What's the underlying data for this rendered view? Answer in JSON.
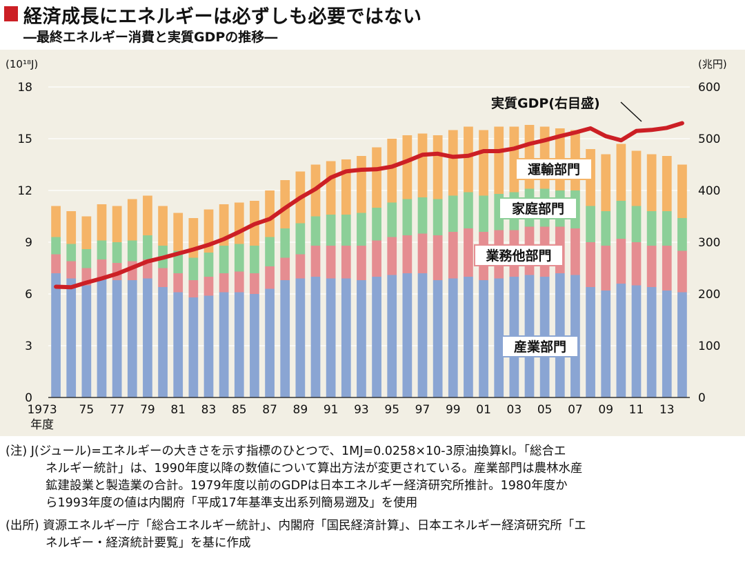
{
  "header": {
    "title": "経済成長にエネルギーは必ずしも必要ではない",
    "subtitle": "―最終エネルギー消費と実質GDPの推移―"
  },
  "colors": {
    "industry": "#8aa5d3",
    "business": "#e58d91",
    "household": "#8ccf98",
    "transport": "#f5b467",
    "gdp_line": "#cc1f25",
    "background": "#f2efe4",
    "title_mark": "#cc1f25"
  },
  "chart_data": {
    "type": "bar",
    "stacked": true,
    "left_unit": "(10¹⁸J)",
    "right_unit": "(兆円)",
    "ylim": [
      0,
      18
    ],
    "y2lim": [
      0,
      600
    ],
    "y_ticks": [
      0,
      3,
      6,
      9,
      12,
      15,
      18
    ],
    "y2_ticks": [
      0,
      100,
      200,
      300,
      400,
      500,
      600
    ],
    "x_tick_labels": [
      "1973",
      "75",
      "77",
      "79",
      "81",
      "83",
      "85",
      "87",
      "89",
      "91",
      "93",
      "95",
      "97",
      "99",
      "01",
      "03",
      "05",
      "07",
      "09",
      "11",
      "13"
    ],
    "x_axis_suffix": "年度",
    "categories": [
      1973,
      1974,
      1975,
      1976,
      1977,
      1978,
      1979,
      1980,
      1981,
      1982,
      1983,
      1984,
      1985,
      1986,
      1987,
      1988,
      1989,
      1990,
      1991,
      1992,
      1993,
      1994,
      1995,
      1996,
      1997,
      1998,
      1999,
      2000,
      2001,
      2002,
      2003,
      2004,
      2005,
      2006,
      2007,
      2008,
      2009,
      2010,
      2011,
      2012,
      2013,
      2014
    ],
    "series": [
      {
        "name": "産業部門",
        "key": "industry",
        "values": [
          7.2,
          6.9,
          6.5,
          6.9,
          6.8,
          6.8,
          6.9,
          6.4,
          6.1,
          5.8,
          5.9,
          6.1,
          6.1,
          6.0,
          6.3,
          6.8,
          6.9,
          7.0,
          6.9,
          6.9,
          6.8,
          7.0,
          7.1,
          7.2,
          7.2,
          6.8,
          6.9,
          7.0,
          6.8,
          6.9,
          7.0,
          7.1,
          7.0,
          7.2,
          7.1,
          6.4,
          6.2,
          6.6,
          6.5,
          6.4,
          6.2,
          6.1
        ]
      },
      {
        "name": "業務他部門",
        "key": "business",
        "values": [
          1.1,
          1.0,
          1.0,
          1.1,
          1.0,
          1.1,
          1.1,
          1.1,
          1.1,
          1.0,
          1.1,
          1.1,
          1.2,
          1.2,
          1.3,
          1.3,
          1.4,
          1.8,
          1.9,
          1.9,
          2.0,
          2.1,
          2.2,
          2.2,
          2.3,
          2.6,
          2.7,
          2.8,
          2.8,
          2.8,
          2.7,
          2.8,
          2.9,
          2.7,
          2.7,
          2.6,
          2.6,
          2.6,
          2.5,
          2.4,
          2.6,
          2.4
        ]
      },
      {
        "name": "家庭部門",
        "key": "household",
        "values": [
          1.0,
          1.0,
          1.1,
          1.1,
          1.2,
          1.2,
          1.4,
          1.3,
          1.3,
          1.3,
          1.4,
          1.6,
          1.6,
          1.6,
          1.7,
          1.7,
          1.8,
          1.7,
          1.8,
          1.8,
          1.9,
          1.9,
          2.0,
          2.1,
          2.1,
          2.1,
          2.1,
          2.1,
          2.1,
          2.1,
          2.2,
          2.2,
          2.2,
          2.1,
          2.2,
          2.1,
          2.0,
          2.2,
          2.1,
          2.0,
          2.0,
          1.9
        ]
      },
      {
        "name": "運輸部門",
        "key": "transport",
        "values": [
          1.8,
          1.9,
          1.9,
          2.1,
          2.1,
          2.4,
          2.3,
          2.3,
          2.2,
          2.3,
          2.5,
          2.4,
          2.4,
          2.6,
          2.7,
          2.8,
          3.0,
          3.0,
          3.1,
          3.2,
          3.3,
          3.5,
          3.7,
          3.7,
          3.7,
          3.7,
          3.8,
          3.8,
          3.8,
          3.9,
          3.8,
          3.7,
          3.6,
          3.6,
          3.5,
          3.3,
          3.3,
          3.3,
          3.2,
          3.3,
          3.2,
          3.1
        ]
      }
    ],
    "gdp": {
      "name": "実質GDP(右目盛)",
      "axis": "right",
      "values": [
        214,
        213,
        222,
        230,
        239,
        251,
        263,
        270,
        278,
        286,
        295,
        306,
        320,
        335,
        345,
        366,
        386,
        403,
        425,
        437,
        440,
        441,
        446,
        457,
        469,
        471,
        465,
        467,
        476,
        476,
        481,
        490,
        497,
        505,
        512,
        520,
        505,
        497,
        515,
        517,
        521,
        530
      ]
    },
    "segment_labels": {
      "industry": "産業部門",
      "business": "業務他部門",
      "household": "家庭部門",
      "transport": "運輸部門"
    },
    "gdp_label": "実質GDP(右目盛)"
  },
  "notes": {
    "note": [
      "(注) J(ジュール)=エネルギーの大きさを示す指標のひとつで、1MJ=0.0258×10-3原油換算kl。「総合エ",
      "ネルギー統計」は、1990年度以降の数値について算出方法が変更されている。産業部門は農林水産",
      "鉱建設業と製造業の合計。1979年度以前のGDPは日本エネルギー経済研究所推計。1980年度か",
      "ら1993年度の値は内閣府「平成17年基準支出系列簡易遡及」を使用"
    ],
    "source": [
      "(出所) 資源エネルギー庁「総合エネルギー統計」、内閣府「国民経済計算」、日本エネルギー経済研究所「エ",
      "ネルギー・経済統計要覧」を基に作成"
    ]
  }
}
